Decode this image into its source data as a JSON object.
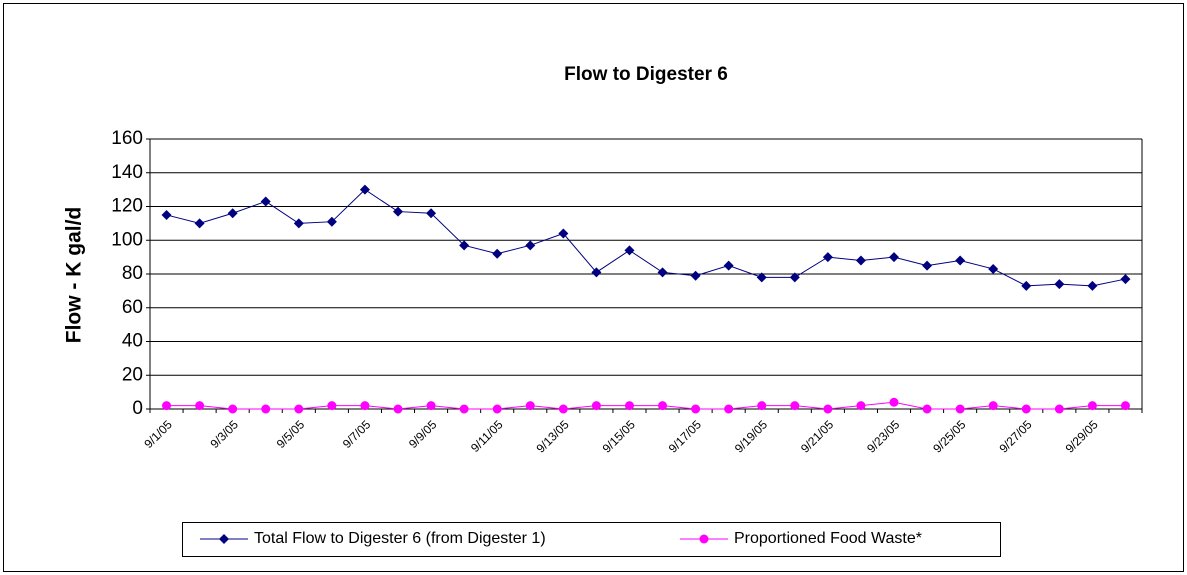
{
  "chart_data": {
    "type": "line",
    "title": "Flow to Digester 6",
    "y_label": "Flow - K gal/d",
    "categories": [
      "9/1/05",
      null,
      "9/3/05",
      null,
      "9/5/05",
      null,
      "9/7/05",
      null,
      "9/9/05",
      null,
      "9/11/05",
      null,
      "9/13/05",
      null,
      "9/15/05",
      null,
      "9/17/05",
      null,
      "9/19/05",
      null,
      "9/21/05",
      null,
      "9/23/05",
      null,
      "9/25/05",
      null,
      "9/27/05",
      null,
      "9/29/05",
      null
    ],
    "series": [
      {
        "name": "Total Flow to Digester 6 (from Digester 1)",
        "color": "#000080",
        "marker": "diamond",
        "values": [
          115,
          110,
          116,
          123,
          110,
          111,
          130,
          117,
          116,
          97,
          92,
          97,
          104,
          81,
          94,
          81,
          79,
          85,
          78,
          78,
          90,
          88,
          90,
          85,
          88,
          83,
          73,
          74,
          73,
          77
        ]
      },
      {
        "name": "Proportioned Food Waste*",
        "color": "#ff00ff",
        "marker": "circle",
        "values": [
          2,
          2,
          0,
          0,
          0,
          2,
          2,
          0,
          2,
          0,
          0,
          2,
          0,
          2,
          2,
          2,
          0,
          0,
          2,
          2,
          0,
          2,
          4,
          0,
          0,
          2,
          0,
          0,
          2,
          2
        ]
      }
    ],
    "ylim": [
      0,
      160
    ],
    "yticks": [
      0,
      20,
      40,
      60,
      80,
      100,
      120,
      140,
      160
    ],
    "grid": true,
    "legend": "bottom"
  }
}
